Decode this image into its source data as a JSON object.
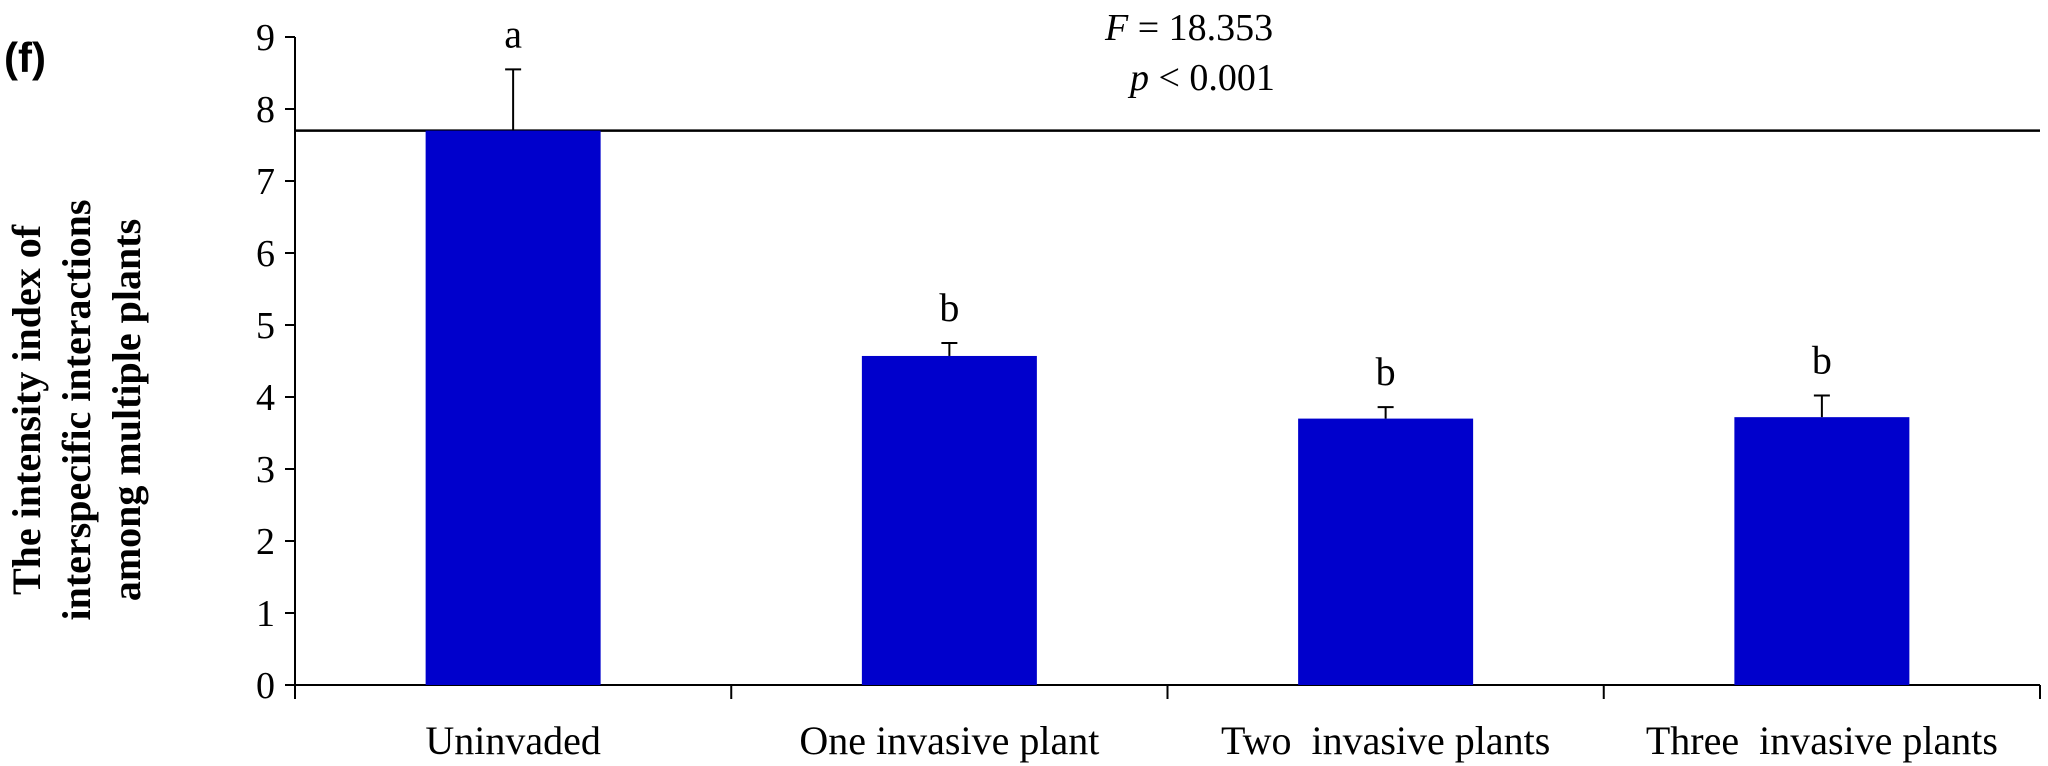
{
  "panel_label": "(f)",
  "chart_data": {
    "type": "bar",
    "categories": [
      "Uninvaded",
      "One invasive plant",
      "Two  invasive plants",
      "Three  invasive plants"
    ],
    "values": [
      7.7,
      4.57,
      3.7,
      3.72
    ],
    "error_upper": [
      8.55,
      4.75,
      3.86,
      4.02
    ],
    "significance_letters": [
      "a",
      "b",
      "b",
      "b"
    ],
    "ylabel_lines": [
      "The intensity index of",
      "interspecific interactions",
      "among multiple plants"
    ],
    "xlabel": "",
    "ylim": [
      0,
      9
    ],
    "yticks": [
      0,
      1,
      2,
      3,
      4,
      5,
      6,
      7,
      8,
      9
    ],
    "reference_line": 7.7,
    "stats": {
      "f_label": "F",
      "f_value": " = 18.353",
      "p_label": "p",
      "p_value": " < 0.001"
    },
    "bar_color": "#0000CC",
    "grid": false,
    "legend": "none"
  }
}
